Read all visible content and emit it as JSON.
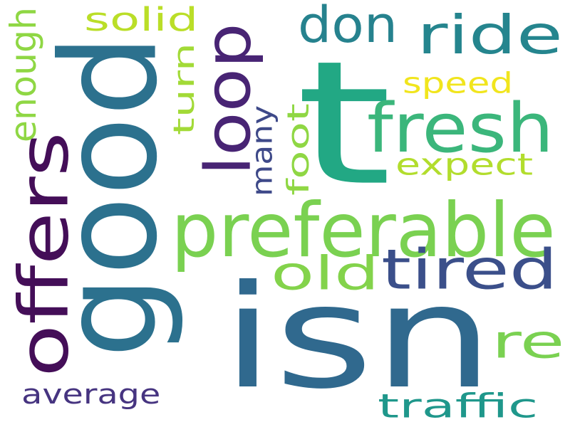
{
  "words": [
    {
      "text": "t",
      "color": "#22a884"
    },
    {
      "text": "good",
      "color": "#2c718e"
    },
    {
      "text": "isn",
      "color": "#30698e"
    },
    {
      "text": "preferable",
      "color": "#7ad151"
    },
    {
      "text": "offers",
      "color": "#440e58"
    },
    {
      "text": "fresh",
      "color": "#3bb67b"
    },
    {
      "text": "tired",
      "color": "#3b4f8a"
    },
    {
      "text": "ride",
      "color": "#25858e"
    },
    {
      "text": "loop",
      "color": "#482474"
    },
    {
      "text": "don",
      "color": "#26828e"
    },
    {
      "text": "old",
      "color": "#83d34b"
    },
    {
      "text": "re",
      "color": "#7ad151"
    },
    {
      "text": "traffic",
      "color": "#1f978b"
    },
    {
      "text": "average",
      "color": "#463480"
    },
    {
      "text": "expect",
      "color": "#b2dd2d"
    },
    {
      "text": "speed",
      "color": "#f1e51d"
    },
    {
      "text": "solid",
      "color": "#bade28"
    },
    {
      "text": "enough",
      "color": "#8fd744"
    },
    {
      "text": "turn",
      "color": "#a2da37"
    },
    {
      "text": "foot",
      "color": "#8fd744"
    },
    {
      "text": "many",
      "color": "#3e4989"
    }
  ]
}
